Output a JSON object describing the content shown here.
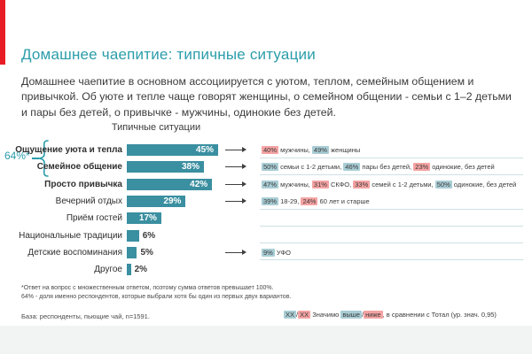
{
  "slide": {
    "title": "Домашнее чаепитие: типичные ситуации",
    "intro": "Домашнее чаепитие в основном ассоциируется с уютом, теплом, семейным общением и привычкой. Об уюте и тепле чаще говорят женщины, о семейном общении - семьи с 1–2 детьми и пары без детей, о привычке - мужчины, одинокие без детей."
  },
  "chart_data": {
    "type": "bar",
    "orientation": "horizontal",
    "title": "Типичные ситуации",
    "unit": "%",
    "xlim": [
      0,
      50
    ],
    "categories": [
      "Ощущение уюта и тепла",
      "Семейное общение",
      "Просто привычка",
      "Вечерний отдых",
      "Приём гостей",
      "Национальные традиции",
      "Детские воспоминания",
      "Другое"
    ],
    "values": [
      45,
      38,
      42,
      29,
      17,
      6,
      5,
      2
    ],
    "bold_categories": [
      0,
      1,
      2
    ],
    "group_bracket": {
      "label": "64%*",
      "rows": [
        0,
        1
      ]
    },
    "arrow_rows": [
      0,
      1,
      2,
      3,
      6
    ],
    "divider_rows": [
      0,
      1,
      3,
      4,
      5,
      6
    ],
    "row_annotations": [
      {
        "row": 0,
        "segments": [
          {
            "text": "40%",
            "hl": "lower"
          },
          {
            "text": " мужчины, "
          },
          {
            "text": "49%",
            "hl": "higher"
          },
          {
            "text": " женщины"
          }
        ]
      },
      {
        "row": 1,
        "segments": [
          {
            "text": "50%",
            "hl": "higher"
          },
          {
            "text": " семьи с 1-2 детьми, "
          },
          {
            "text": "46%",
            "hl": "higher"
          },
          {
            "text": " пары без детей, "
          },
          {
            "text": "23%",
            "hl": "lower"
          },
          {
            "text": " одинокие, без детей"
          }
        ]
      },
      {
        "row": 2,
        "segments": [
          {
            "text": "47%",
            "hl": "higher"
          },
          {
            "text": " мужчины, "
          },
          {
            "text": "31%",
            "hl": "lower"
          },
          {
            "text": " СКФО, "
          },
          {
            "text": "33%",
            "hl": "lower"
          },
          {
            "text": " семей с 1-2 детьми, "
          },
          {
            "text": "50%",
            "hl": "higher"
          },
          {
            "text": " одинокие, без детей"
          }
        ]
      },
      {
        "row": 3,
        "segments": [
          {
            "text": "39%",
            "hl": "higher"
          },
          {
            "text": " 18-29, "
          },
          {
            "text": "24%",
            "hl": "lower"
          },
          {
            "text": " 60 лет и старше"
          }
        ]
      },
      {
        "row": 6,
        "segments": [
          {
            "text": "9%",
            "hl": "higher"
          },
          {
            "text": " УФО"
          }
        ]
      }
    ]
  },
  "footnotes": {
    "line1": "*Ответ на вопрос с множественным ответом, поэтому сумма ответов превышает 100%.",
    "line2": "64% - доля именно респондентов, которые выбрали хотя бы один из первых двух вариантов."
  },
  "base_note": "База: респонденты, пьющие чай, n=1591.",
  "legend": {
    "segments": [
      {
        "text": "ХХ",
        "hl": "higher"
      },
      {
        "text": "/"
      },
      {
        "text": "ХХ",
        "hl": "lower"
      },
      {
        "text": " Значимо "
      },
      {
        "text": "выше",
        "hl": "higher"
      },
      {
        "text": "/"
      },
      {
        "text": "ниже",
        "hl": "lower"
      },
      {
        "text": ", в сравнении с Тотал (ур. знач. 0,95)"
      }
    ]
  },
  "colors": {
    "accent_red": "#e81c24",
    "title_teal": "#2b9daa",
    "bar_teal": "#3a8fa0",
    "highlight_higher_bg": "#a9cdd5",
    "highlight_lower_bg": "#f5a3a3",
    "divider": "#cfe0e4",
    "footer_band": "#f2f4f4"
  }
}
